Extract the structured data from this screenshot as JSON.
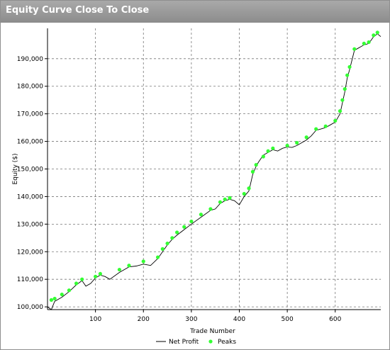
{
  "window": {
    "title": "Equity Curve Close To Close"
  },
  "chart_data": {
    "type": "line",
    "title": "",
    "xlabel": "Trade Number",
    "ylabel": "Equity ($)",
    "xlim": [
      0,
      695
    ],
    "ylim": [
      99000,
      201000
    ],
    "x_ticks": [
      100,
      200,
      300,
      400,
      500,
      600
    ],
    "y_ticks": [
      100000,
      110000,
      120000,
      130000,
      140000,
      150000,
      160000,
      170000,
      180000,
      190000
    ],
    "x_tick_labels": [
      "100",
      "200",
      "300",
      "400",
      "500",
      "600"
    ],
    "y_tick_labels": [
      "100,000",
      "110,000",
      "120,000",
      "130,000",
      "140,000",
      "150,000",
      "160,000",
      "170,000",
      "180,000",
      "190,000"
    ],
    "grid": true,
    "legend_position": "bottom-center",
    "series": [
      {
        "name": "Net Profit",
        "color": "#000000",
        "x": [
          0,
          8,
          15,
          30,
          45,
          60,
          72,
          80,
          90,
          100,
          110,
          120,
          130,
          150,
          170,
          185,
          200,
          215,
          230,
          240,
          250,
          260,
          270,
          285,
          300,
          320,
          340,
          350,
          360,
          370,
          380,
          390,
          400,
          410,
          420,
          428,
          435,
          440,
          450,
          460,
          470,
          480,
          490,
          500,
          510,
          520,
          530,
          540,
          550,
          560,
          570,
          580,
          590,
          600,
          610,
          615,
          620,
          625,
          630,
          640,
          650,
          660,
          670,
          680,
          688,
          695
        ],
        "y": [
          100000,
          99000,
          102000,
          103500,
          105500,
          108000,
          109500,
          107500,
          108500,
          110500,
          111500,
          111000,
          110000,
          112500,
          114500,
          114800,
          115500,
          115000,
          117500,
          120000,
          122500,
          124500,
          126000,
          128000,
          130000,
          132500,
          135000,
          135500,
          137500,
          138500,
          139000,
          138500,
          137000,
          140000,
          142000,
          148000,
          151000,
          152500,
          155000,
          156000,
          157000,
          156500,
          157500,
          158000,
          157800,
          158500,
          159500,
          160500,
          162000,
          164000,
          164500,
          165000,
          166000,
          167000,
          170000,
          174000,
          178000,
          183000,
          186000,
          193000,
          194000,
          195000,
          195500,
          198000,
          199000,
          198000
        ]
      },
      {
        "name": "Peaks",
        "color": "#33ff33",
        "x": [
          8,
          15,
          30,
          45,
          60,
          72,
          100,
          110,
          150,
          170,
          200,
          230,
          240,
          250,
          260,
          270,
          285,
          300,
          320,
          340,
          360,
          370,
          380,
          410,
          420,
          428,
          435,
          450,
          460,
          470,
          500,
          520,
          540,
          560,
          580,
          600,
          610,
          615,
          620,
          625,
          630,
          640,
          660,
          670,
          680,
          688
        ],
        "y": [
          102500,
          103000,
          104500,
          106000,
          108500,
          110000,
          111000,
          112000,
          113500,
          115000,
          116500,
          118000,
          121000,
          123000,
          125000,
          127000,
          129000,
          131000,
          133500,
          135500,
          138000,
          139000,
          139500,
          141000,
          143000,
          149000,
          151500,
          154500,
          156500,
          157500,
          158500,
          159500,
          161500,
          164500,
          165500,
          167500,
          171000,
          175000,
          179000,
          184000,
          187000,
          193500,
          195500,
          196000,
          198500,
          199500
        ]
      }
    ]
  }
}
